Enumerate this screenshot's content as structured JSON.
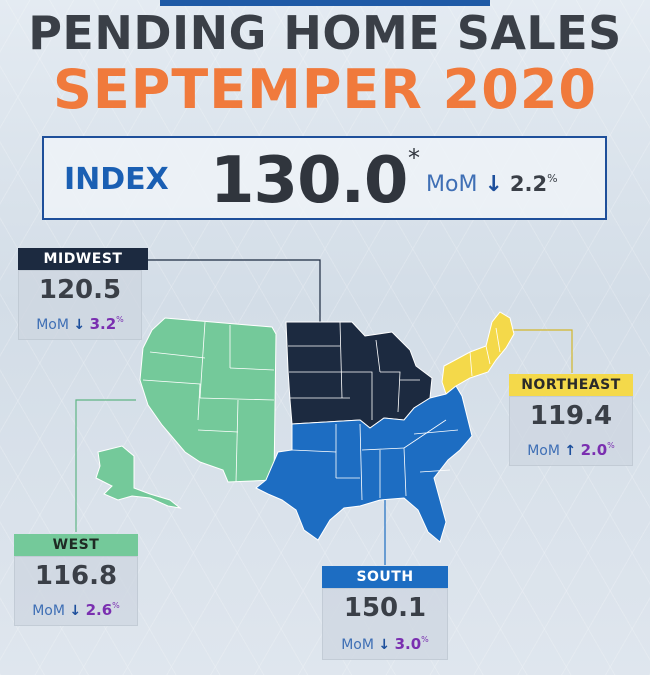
{
  "header": {
    "title_line1": "PENDING HOME SALES",
    "title_line2": "SEPTEMPER 2020"
  },
  "index": {
    "label": "INDEX",
    "value": "130.0",
    "asterisk": "*",
    "mom_label": "MoM",
    "direction": "down",
    "arrow": "↓",
    "change": "2.2",
    "percent": "%"
  },
  "regions": {
    "midwest": {
      "name": "MIDWEST",
      "value": "120.5",
      "mom_label": "MoM",
      "direction": "down",
      "arrow": "↓",
      "change": "3.2",
      "percent": "%",
      "tag_bg": "#1c2a40",
      "tag_color": "#ffffff"
    },
    "northeast": {
      "name": "NORTHEAST",
      "value": "119.4",
      "mom_label": "MoM",
      "direction": "up",
      "arrow": "↑",
      "change": "2.0",
      "percent": "%",
      "tag_bg": "#f4d94a",
      "tag_color": "#2a2a2a"
    },
    "west": {
      "name": "WEST",
      "value": "116.8",
      "mom_label": "MoM",
      "direction": "down",
      "arrow": "↓",
      "change": "2.6",
      "percent": "%",
      "tag_bg": "#74c99a",
      "tag_color": "#1f2a24"
    },
    "south": {
      "name": "SOUTH",
      "value": "150.1",
      "mom_label": "MoM",
      "direction": "down",
      "arrow": "↓",
      "change": "3.0",
      "percent": "%",
      "tag_bg": "#1d6dc2",
      "tag_color": "#ffffff"
    }
  },
  "colors": {
    "title_dark": "#3a3f47",
    "title_orange": "#f07a3c",
    "index_blue": "#1a5fb3",
    "midwest": "#1c2a40",
    "northeast": "#f4d94a",
    "west": "#74c99a",
    "south": "#1d6dc2",
    "change_value": "#7a2fb0"
  }
}
